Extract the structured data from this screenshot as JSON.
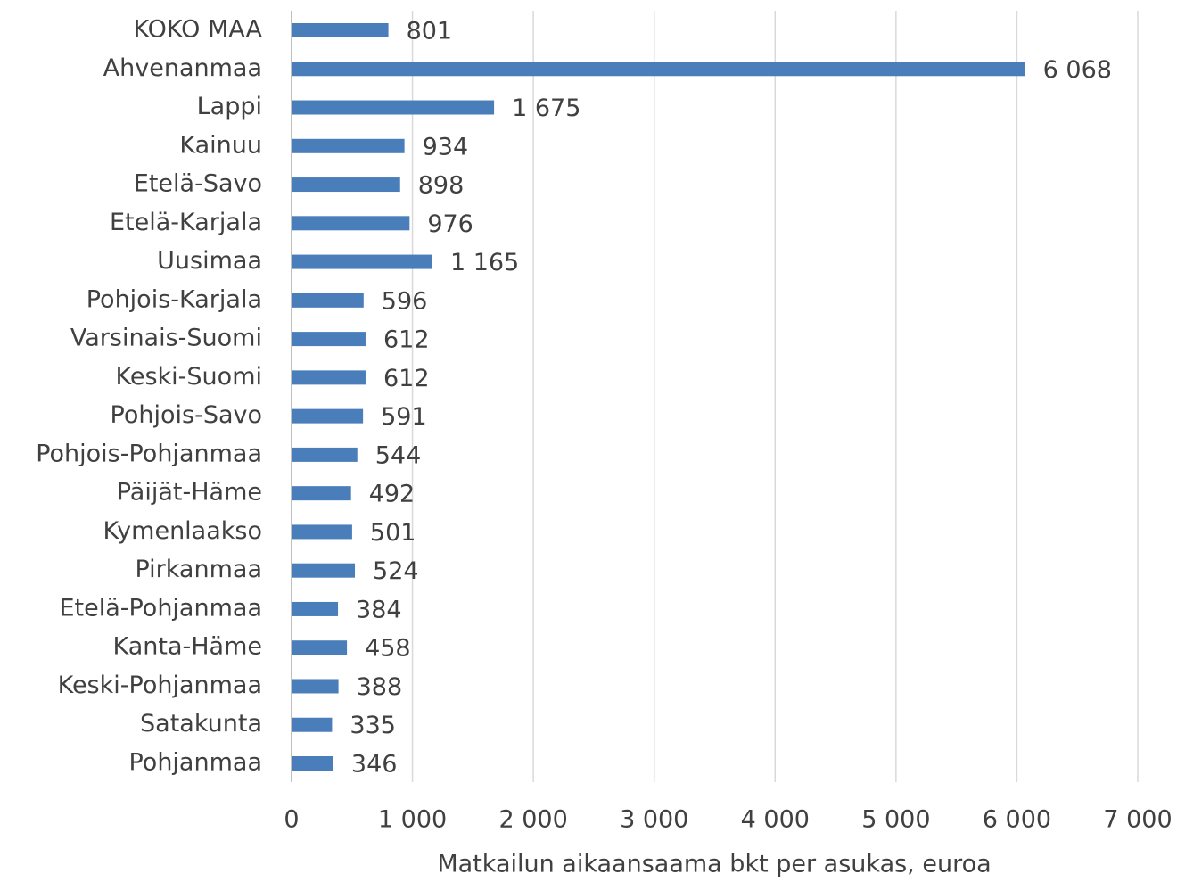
{
  "chart_data": {
    "type": "bar",
    "orientation": "horizontal",
    "x_label": "Matkailun aikaansaama bkt per asukas, euroa",
    "categories": [
      "KOKO MAA",
      "Ahvenanmaa",
      "Lappi",
      "Kainuu",
      "Etelä-Savo",
      "Etelä-Karjala",
      "Uusimaa",
      "Pohjois-Karjala",
      "Varsinais-Suomi",
      "Keski-Suomi",
      "Pohjois-Savo",
      "Pohjois-Pohjanmaa",
      "Päijät-Häme",
      "Kymenlaakso",
      "Pirkanmaa",
      "Etelä-Pohjanmaa",
      "Kanta-Häme",
      "Keski-Pohjanmaa",
      "Satakunta",
      "Pohjanmaa"
    ],
    "values": [
      801,
      6068,
      1675,
      934,
      898,
      976,
      1165,
      596,
      612,
      612,
      591,
      544,
      492,
      501,
      524,
      384,
      458,
      388,
      335,
      346
    ],
    "value_labels": [
      "801",
      "6 068",
      "1 675",
      "934",
      "898",
      "976",
      "1 165",
      "596",
      "612",
      "612",
      "591",
      "544",
      "492",
      "501",
      "524",
      "384",
      "458",
      "388",
      "335",
      "346"
    ],
    "color": "#4a7ebb",
    "xlim": [
      0,
      7000
    ],
    "xticks": [
      0,
      {
        "value": 1000,
        "label": "1 000"
      },
      {
        "value": 2000,
        "label": "2 000"
      },
      {
        "value": 3000,
        "label": "3 000"
      },
      {
        "value": 4000,
        "label": "4 000"
      },
      {
        "value": 5000,
        "label": "5 000"
      },
      {
        "value": 6000,
        "label": "6 000"
      },
      {
        "value": 7000,
        "label": "7 000"
      }
    ],
    "grid": true
  }
}
